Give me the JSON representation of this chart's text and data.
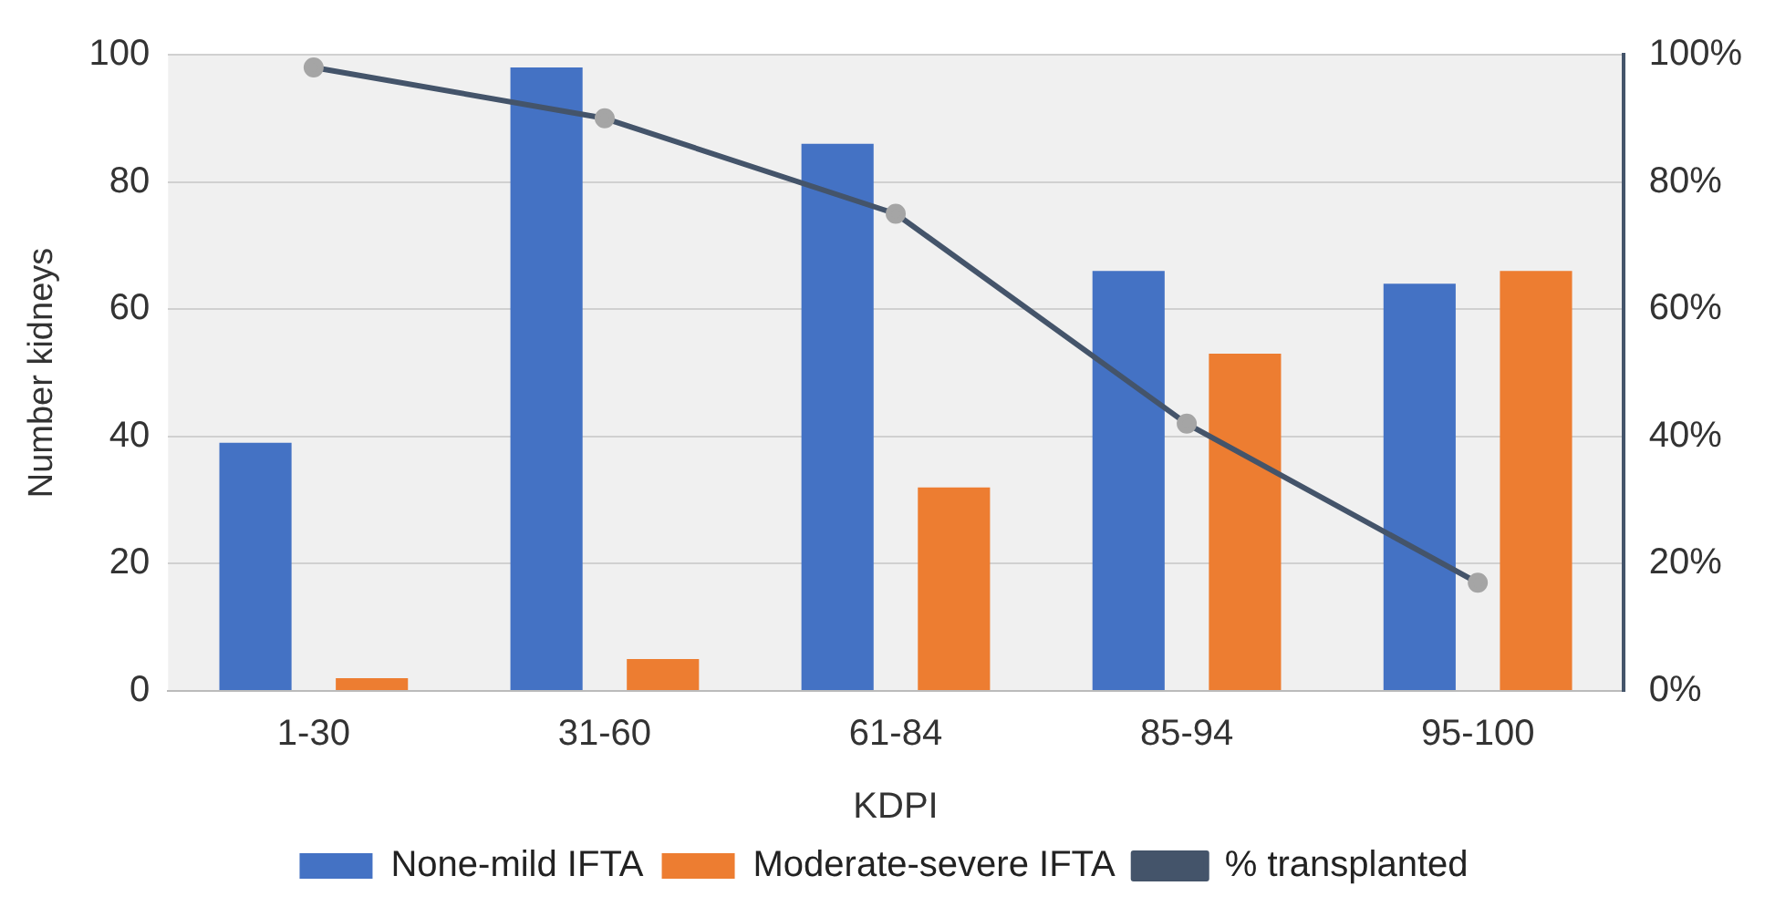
{
  "chart_data": {
    "type": "bar",
    "categories": [
      "1-30",
      "31-60",
      "61-84",
      "85-94",
      "95-100"
    ],
    "series": [
      {
        "name": "None-mild IFTA",
        "color": "#4472c4",
        "values": [
          39,
          98,
          86,
          66,
          64
        ]
      },
      {
        "name": "Moderate-severe IFTA",
        "color": "#ed7d31",
        "values": [
          2,
          5,
          32,
          53,
          66
        ]
      },
      {
        "name": "% transplanted",
        "type": "line",
        "axis": "y2",
        "color": "#44546a",
        "values": [
          98,
          90,
          75,
          42,
          17
        ]
      }
    ],
    "xlabel": "KDPI",
    "ylabel": "Number kidneys",
    "ylim": [
      0,
      100
    ],
    "yticks": [
      0,
      20,
      40,
      60,
      80,
      100
    ],
    "y2lim": [
      0,
      100
    ],
    "y2ticks": [
      {
        "value": 0,
        "label": "0%"
      },
      {
        "value": 20,
        "label": "20%"
      },
      {
        "value": 40,
        "label": "40%"
      },
      {
        "value": 60,
        "label": "60%"
      },
      {
        "value": 80,
        "label": "80%"
      },
      {
        "value": 100,
        "label": "100%"
      }
    ],
    "grid": "y",
    "legend": "bottom",
    "marker": "circle",
    "line_style": "solid"
  }
}
